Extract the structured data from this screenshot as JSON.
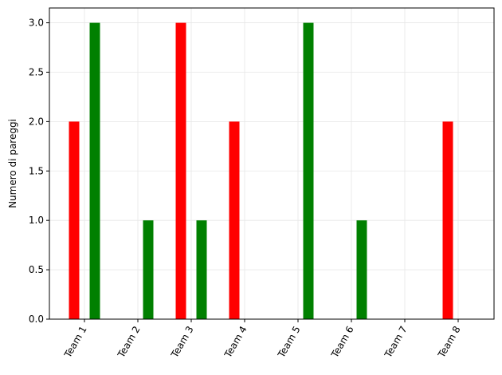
{
  "chart_data": {
    "type": "bar",
    "categories": [
      "Team 1",
      "Team 2",
      "Team 3",
      "Team 4",
      "Team 5",
      "Team 6",
      "Team 7",
      "Team 8"
    ],
    "series": [
      {
        "color": "#ff0000",
        "values": [
          2,
          0,
          3,
          2,
          0,
          0,
          0,
          2
        ]
      },
      {
        "color": "#008000",
        "values": [
          3,
          1,
          1,
          0,
          3,
          1,
          0,
          0
        ]
      }
    ],
    "title": "",
    "xlabel": "",
    "ylabel": "Numero di pareggi",
    "ylim": [
      0,
      3.15
    ],
    "yticks": [
      "0.0",
      "0.5",
      "1.0",
      "1.5",
      "2.0",
      "2.5",
      "3.0"
    ],
    "grid": true,
    "legend": "none"
  }
}
